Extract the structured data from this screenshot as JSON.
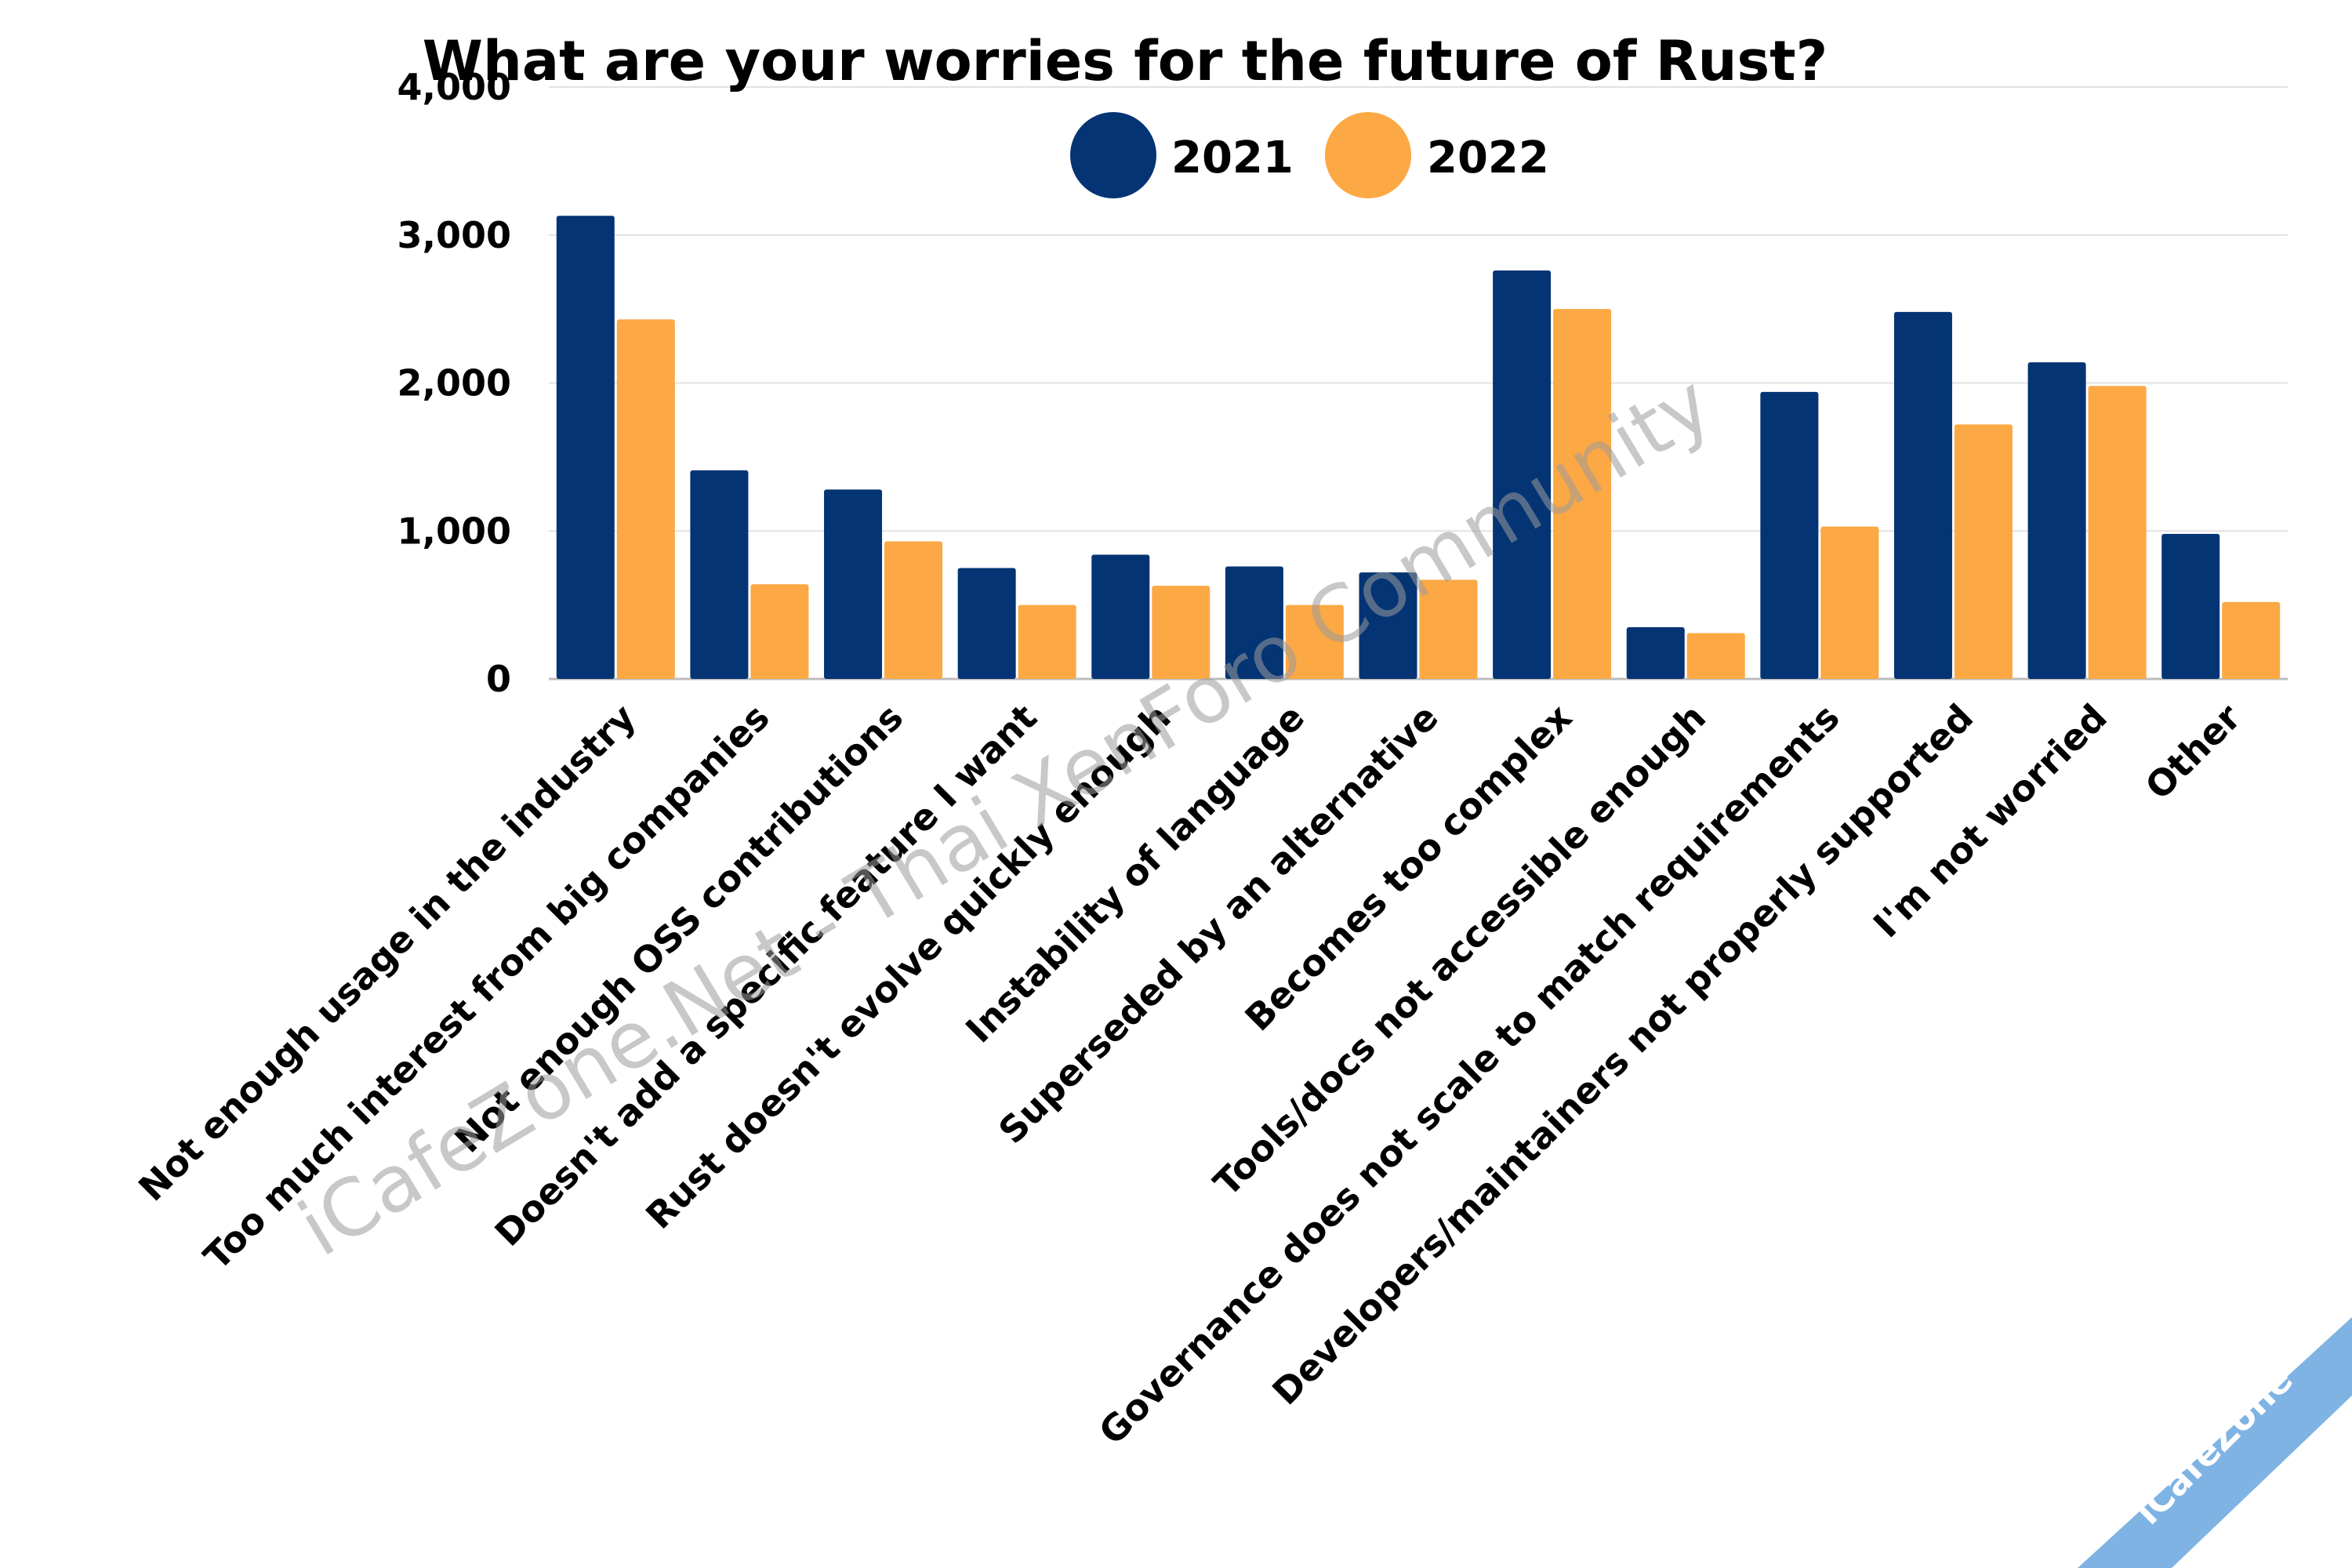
{
  "chart_data": {
    "type": "bar",
    "title": "What are your worries for the future of Rust?",
    "xlabel": "",
    "ylabel": "",
    "ylim": [
      0,
      4000
    ],
    "yticks": [
      0,
      1000,
      2000,
      3000,
      4000
    ],
    "ytick_labels": [
      "0",
      "1,000",
      "2,000",
      "3,000",
      "4,000"
    ],
    "grid": true,
    "legend_position": "top-center",
    "categories": [
      "Not enough usage in the industry",
      "Too much interest from big companies",
      "Not enough OSS contributions",
      "Doesn't add a specific feature I want",
      "Rust doesn't evolve quickly enough",
      "Instability of language",
      "Superseded by an alternative",
      "Becomes too complex",
      "Tools/docs not accessible enough",
      "Governance does not scale to match requirements",
      "Developers/maintainers not properly supported",
      "I'm not worried",
      "Other"
    ],
    "series": [
      {
        "name": "2021",
        "color": "#043474",
        "values": [
          3130,
          1410,
          1280,
          750,
          840,
          760,
          720,
          2760,
          350,
          1940,
          2480,
          2140,
          980
        ]
      },
      {
        "name": "2022",
        "color": "#FCA844",
        "values": [
          2430,
          640,
          930,
          500,
          630,
          500,
          670,
          2500,
          310,
          1030,
          1720,
          1980,
          520
        ]
      }
    ]
  },
  "watermark": {
    "text": "iCafeZone.Net - Thai XenForo Community"
  },
  "corner_badge": {
    "text": "iCafeZone",
    "color": "#7fb3e3"
  }
}
